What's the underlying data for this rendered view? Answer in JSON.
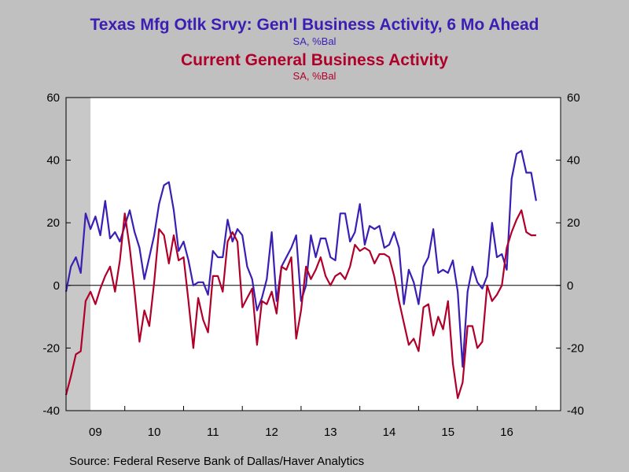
{
  "chart_data": {
    "type": "line",
    "title": "Texas Mfg Otlk Srvy: Gen'l Business Activity, 6 Mo Ahead",
    "title_units": "SA, %Bal",
    "subtitle": "Current General Business Activity",
    "subtitle_units": "SA, %Bal",
    "source": "Source:  Federal Reserve Bank of Dallas/Haver Analytics",
    "ylim": [
      -40,
      60
    ],
    "yticks": [
      -40,
      -20,
      0,
      20,
      40,
      60
    ],
    "ytick_labels": [
      "-40",
      "-20",
      "0",
      "20",
      "40",
      "60"
    ],
    "x_start": "2009-01",
    "x_end": "2017-06",
    "xtick_labels": [
      "09",
      "10",
      "11",
      "12",
      "13",
      "14",
      "15",
      "16"
    ],
    "grid": false,
    "colors": {
      "series_1": "#3B1EB4",
      "series_2": "#B0002A",
      "zero_line": "#000000",
      "plot_bg": "#FFFFFF",
      "page_bg": "#C0C0C0",
      "recession_shade": "#C8C8C8"
    },
    "shaded_period": [
      "2009-01",
      "2009-06"
    ],
    "series": [
      {
        "name": "Texas Mfg Otlk Srvy: Gen'l Business Activity, 6 Mo Ahead",
        "start": "2009-01",
        "values": [
          -2,
          6,
          9,
          4,
          23,
          18,
          22,
          16,
          27,
          15,
          17,
          14,
          19,
          24,
          17,
          12,
          2,
          9,
          16,
          26,
          32,
          33,
          24,
          11,
          14,
          8,
          0,
          1,
          1,
          -3,
          11,
          9,
          9,
          21,
          14,
          18,
          16,
          6,
          2,
          -8,
          -4,
          2,
          17,
          -5,
          6,
          9,
          12,
          16,
          -5,
          0,
          16,
          9,
          15,
          15,
          9,
          8,
          23,
          23,
          14,
          17,
          26,
          13,
          19,
          18,
          19,
          12,
          13,
          17,
          12,
          -6,
          5,
          1,
          -6,
          6,
          9,
          18,
          4,
          5,
          4,
          8,
          -2,
          -26,
          -2,
          6,
          1,
          -1,
          3,
          20,
          9,
          10,
          5,
          34,
          42,
          43,
          36,
          36,
          27
        ]
      },
      {
        "name": "Current General Business Activity",
        "start": "2009-01",
        "values": [
          -35,
          -29,
          -22,
          -21,
          -5,
          -2,
          -6,
          -1,
          3,
          6,
          -2,
          8,
          23,
          12,
          -2,
          -18,
          -8,
          -13,
          1,
          18,
          16,
          7,
          16,
          8,
          9,
          -5,
          -20,
          -4,
          -11,
          -15,
          3,
          3,
          -2,
          14,
          17,
          14,
          -7,
          -4,
          -1,
          -19,
          -5,
          -6,
          -2,
          -9,
          6,
          5,
          9,
          -17,
          -8,
          6,
          2,
          5,
          9,
          3,
          0,
          3,
          4,
          2,
          6,
          13,
          11,
          12,
          11,
          7,
          10,
          10,
          9,
          3,
          -5,
          -12,
          -19,
          -17,
          -21,
          -7,
          -6,
          -16,
          -10,
          -14,
          -5,
          -25,
          -36,
          -31,
          -13,
          -13,
          -20,
          -18,
          0,
          -5,
          -3,
          0,
          12,
          17,
          21,
          24,
          17,
          16,
          16
        ]
      }
    ]
  }
}
